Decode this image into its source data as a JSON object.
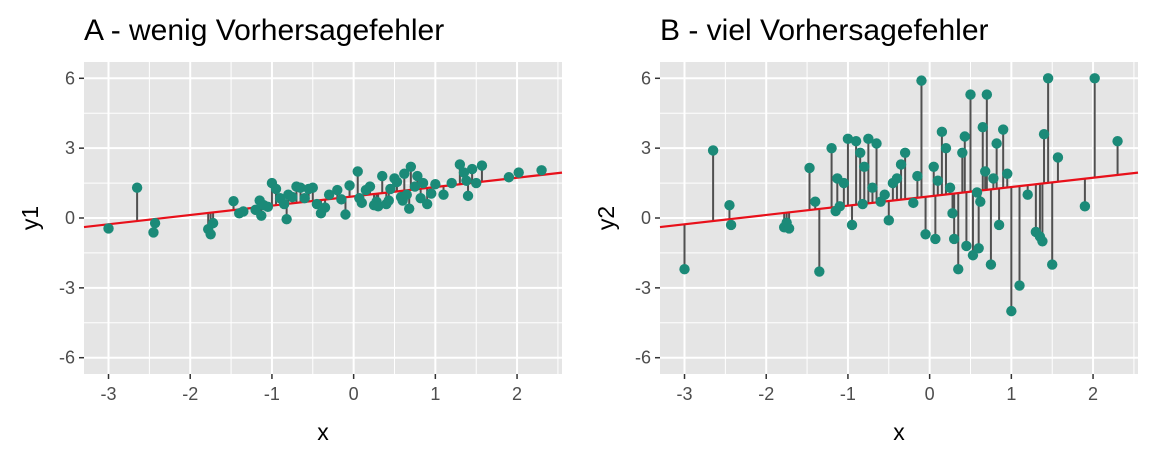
{
  "colors": {
    "panel_background": "#E5E5E5",
    "grid": "#FFFFFF",
    "point": "#1B8A78",
    "residual": "#505050",
    "regression_line": "#E8101A"
  },
  "chart_data": [
    {
      "type": "scatter",
      "title": "A - wenig Vorhersagefehler",
      "xlabel": "x",
      "ylabel": "y1",
      "xlim": [
        -3.3,
        2.55
      ],
      "ylim": [
        -6.7,
        6.7
      ],
      "xticks": [
        -3,
        -2,
        -1,
        0,
        1,
        2
      ],
      "yticks": [
        -6,
        -3,
        0,
        3,
        6
      ],
      "xtick_labels": [
        "-3",
        "-2",
        "-1",
        "0",
        "1",
        "2"
      ],
      "ytick_labels": [
        "-6",
        "-3",
        "0",
        "3",
        "6"
      ],
      "grid": true,
      "regression_line": {
        "intercept": 0.93,
        "slope": 0.4
      },
      "residual_segments": true,
      "x": [
        -3.0,
        -2.65,
        -2.45,
        -2.43,
        -1.78,
        -1.75,
        -1.72,
        -1.47,
        -1.4,
        -1.35,
        -1.2,
        -1.15,
        -1.13,
        -1.1,
        -1.05,
        -1.0,
        -0.95,
        -0.9,
        -0.85,
        -0.82,
        -0.8,
        -0.75,
        -0.7,
        -0.65,
        -0.6,
        -0.55,
        -0.5,
        -0.45,
        -0.4,
        -0.35,
        -0.3,
        -0.2,
        -0.15,
        -0.1,
        -0.05,
        0.05,
        0.07,
        0.1,
        0.15,
        0.2,
        0.25,
        0.28,
        0.3,
        0.35,
        0.4,
        0.43,
        0.45,
        0.5,
        0.53,
        0.58,
        0.6,
        0.62,
        0.65,
        0.68,
        0.7,
        0.75,
        0.78,
        0.82,
        0.85,
        0.9,
        0.95,
        1.0,
        1.1,
        1.2,
        1.3,
        1.35,
        1.38,
        1.4,
        1.45,
        1.5,
        1.57,
        1.9,
        2.02,
        2.3
      ],
      "y": [
        -0.45,
        1.3,
        -0.62,
        -0.22,
        -0.48,
        -0.7,
        -0.22,
        0.72,
        0.2,
        0.28,
        0.35,
        0.75,
        0.1,
        0.55,
        0.48,
        1.5,
        1.25,
        0.85,
        0.6,
        -0.05,
        1.0,
        0.9,
        1.35,
        1.3,
        0.85,
        1.25,
        1.3,
        0.6,
        0.2,
        0.45,
        1.0,
        1.2,
        0.8,
        0.15,
        1.4,
        2.0,
        0.85,
        0.65,
        1.2,
        1.35,
        0.55,
        0.7,
        0.5,
        1.8,
        0.6,
        0.75,
        1.25,
        1.7,
        1.55,
        0.9,
        0.75,
        1.9,
        1.0,
        0.4,
        2.2,
        1.35,
        1.8,
        0.85,
        1.5,
        0.6,
        1.05,
        1.45,
        1.0,
        1.5,
        2.3,
        1.95,
        1.6,
        0.95,
        2.1,
        1.5,
        2.25,
        1.75,
        1.95,
        2.05
      ]
    },
    {
      "type": "scatter",
      "title": "B - viel Vorhersagefehler",
      "xlabel": "x",
      "ylabel": "y2",
      "xlim": [
        -3.3,
        2.55
      ],
      "ylim": [
        -6.7,
        6.7
      ],
      "xticks": [
        -3,
        -2,
        -1,
        0,
        1,
        2
      ],
      "yticks": [
        -6,
        -3,
        0,
        3,
        6
      ],
      "xtick_labels": [
        "-3",
        "-2",
        "-1",
        "0",
        "1",
        "2"
      ],
      "ytick_labels": [
        "-6",
        "-3",
        "0",
        "3",
        "6"
      ],
      "grid": true,
      "regression_line": {
        "intercept": 0.93,
        "slope": 0.4
      },
      "residual_segments": true,
      "x": [
        -3.0,
        -2.65,
        -2.45,
        -2.43,
        -1.78,
        -1.75,
        -1.72,
        -1.47,
        -1.4,
        -1.35,
        -1.2,
        -1.15,
        -1.13,
        -1.1,
        -1.05,
        -1.0,
        -0.95,
        -0.9,
        -0.85,
        -0.82,
        -0.8,
        -0.75,
        -0.7,
        -0.65,
        -0.6,
        -0.55,
        -0.5,
        -0.45,
        -0.4,
        -0.35,
        -0.3,
        -0.2,
        -0.15,
        -0.1,
        -0.05,
        0.05,
        0.07,
        0.1,
        0.15,
        0.2,
        0.25,
        0.28,
        0.3,
        0.35,
        0.4,
        0.43,
        0.45,
        0.5,
        0.53,
        0.58,
        0.6,
        0.62,
        0.65,
        0.68,
        0.7,
        0.75,
        0.78,
        0.82,
        0.85,
        0.9,
        0.95,
        1.0,
        1.1,
        1.2,
        1.3,
        1.35,
        1.38,
        1.4,
        1.45,
        1.5,
        1.57,
        1.9,
        2.02,
        2.3
      ],
      "y": [
        -2.2,
        2.9,
        0.55,
        -0.3,
        -0.4,
        -0.2,
        -0.45,
        2.15,
        0.7,
        -2.3,
        3.0,
        0.3,
        1.7,
        0.5,
        1.5,
        3.4,
        -0.3,
        3.3,
        2.8,
        0.6,
        2.2,
        3.4,
        1.3,
        3.2,
        0.7,
        1.0,
        -0.1,
        1.5,
        1.7,
        2.3,
        2.8,
        0.65,
        1.8,
        5.9,
        -0.7,
        2.2,
        -0.9,
        1.6,
        3.7,
        3.0,
        1.3,
        0.2,
        -0.9,
        -2.2,
        2.8,
        3.5,
        -1.2,
        5.3,
        -1.6,
        1.1,
        -1.3,
        0.7,
        3.9,
        2.0,
        5.3,
        -2.0,
        1.7,
        3.2,
        -0.3,
        3.8,
        1.9,
        -4.0,
        -2.9,
        1.0,
        -0.6,
        -0.8,
        -1.0,
        3.6,
        6.0,
        -2.0,
        2.6,
        0.5,
        6.0,
        3.3
      ]
    }
  ]
}
